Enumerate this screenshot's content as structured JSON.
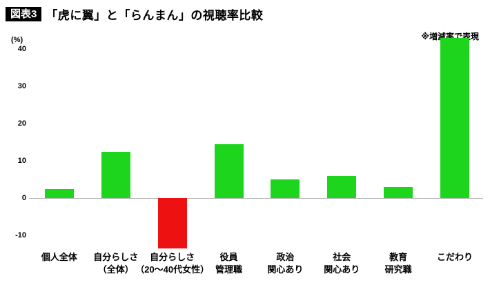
{
  "header": {
    "badge": "図表3",
    "title": "「虎に翼」と「らんまん」の視聴率比較",
    "note": "※増減率で表現"
  },
  "chart_data": {
    "type": "bar",
    "title": "「虎に翼」と「らんまん」の視聴率比較",
    "unit_label": "(%)",
    "xlabel": "",
    "ylabel": "(%)",
    "categories": [
      "個人全体",
      "自分らしさ\n（全体）",
      "自分らしさ\n（20〜40代女性）",
      "役員\n管理職",
      "政治\n関心あり",
      "社会\n関心あり",
      "教育\n研究職",
      "こだわり"
    ],
    "values": [
      2.5,
      12.5,
      -13.5,
      14.5,
      5,
      6,
      3,
      43
    ],
    "yticks": [
      40,
      30,
      20,
      10,
      0,
      -10
    ],
    "ylim": [
      -15,
      45
    ],
    "grid": false,
    "legend": false,
    "positive_color": "#1ed51e",
    "negative_color": "#ee1111"
  }
}
